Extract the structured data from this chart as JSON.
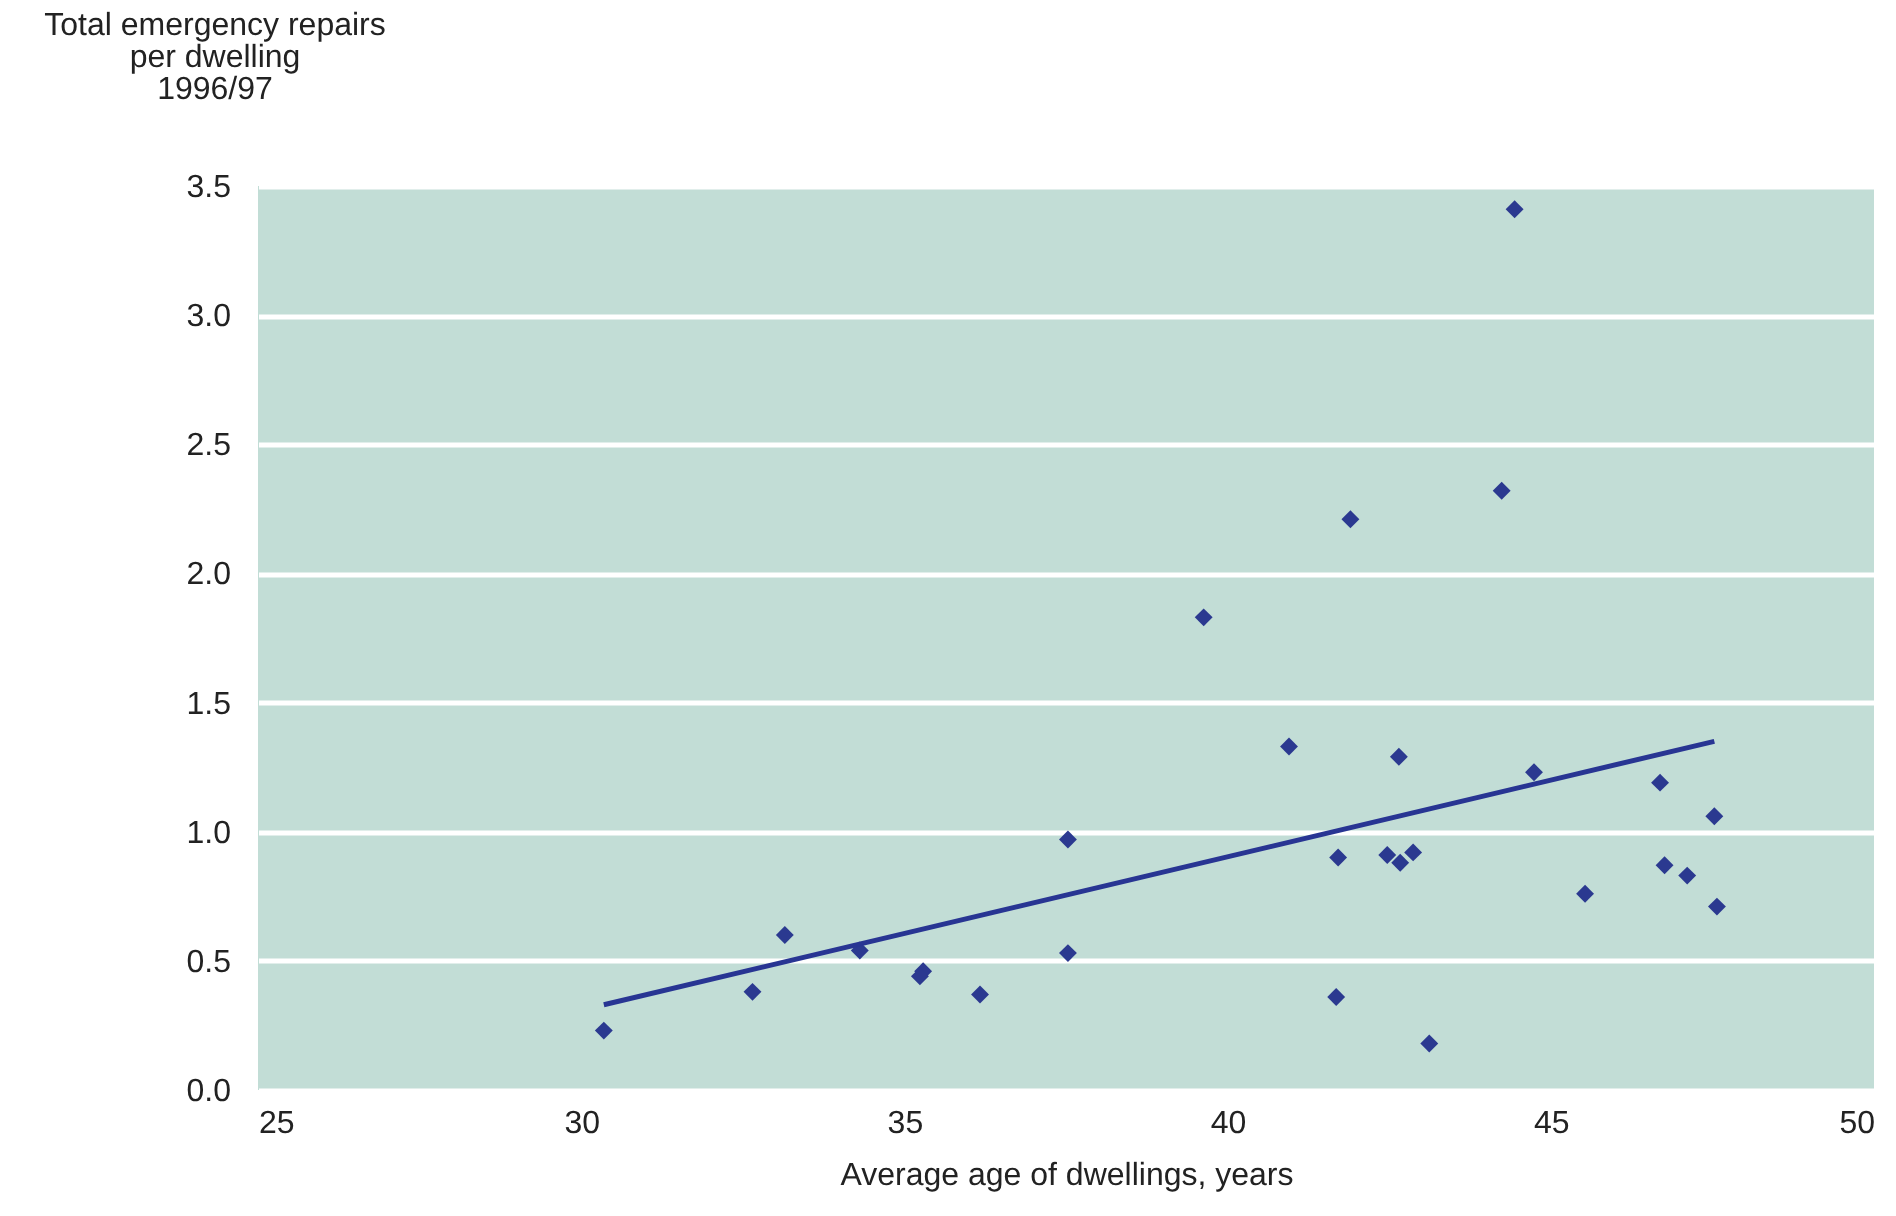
{
  "chart_data": {
    "type": "scatter",
    "xlabel": "Average age of dwellings, years",
    "ylabel": "Total emergency repairs\nper dwelling\n1996/97",
    "xlim": [
      25,
      50
    ],
    "xticks": [
      25,
      30,
      35,
      40,
      45,
      50
    ],
    "ylim": [
      0,
      3.5
    ],
    "yticks": [
      {
        "value": 0,
        "label": "0.0"
      },
      {
        "value": 0.5,
        "label": "0.5"
      },
      {
        "value": 1,
        "label": "1.0"
      },
      {
        "value": 1.5,
        "label": "1.5"
      },
      {
        "value": 2,
        "label": "2.0"
      },
      {
        "value": 2.5,
        "label": "2.5"
      },
      {
        "value": 3,
        "label": "3.0"
      },
      {
        "value": 3.5,
        "label": "3.5"
      }
    ],
    "grid": "y",
    "marker": "diamond",
    "series": [
      {
        "color": "#2b3990",
        "x": [
          30.35,
          32.65,
          33.15,
          34.31,
          35.29,
          35.24,
          36.17,
          37.53,
          37.53,
          44.44,
          44.24,
          41.9,
          39.63,
          40.95,
          42.65,
          44.74,
          46.69,
          47.53,
          41.71,
          42.47,
          42.67,
          42.87,
          45.53,
          46.76,
          47.11,
          47.57,
          41.68,
          43.12
        ],
        "values": [
          0.23,
          0.38,
          0.6,
          0.54,
          0.46,
          0.44,
          0.37,
          0.97,
          0.53,
          3.41,
          2.32,
          2.21,
          1.83,
          1.33,
          1.29,
          1.23,
          1.19,
          1.06,
          0.9,
          0.91,
          0.88,
          0.92,
          0.76,
          0.87,
          0.83,
          0.71,
          0.36,
          0.18
        ]
      },
      {
        "type": "line",
        "marker": "none",
        "color": "#283593",
        "x": [
          30.35,
          47.53
        ],
        "values": [
          0.33,
          1.35
        ]
      }
    ]
  }
}
